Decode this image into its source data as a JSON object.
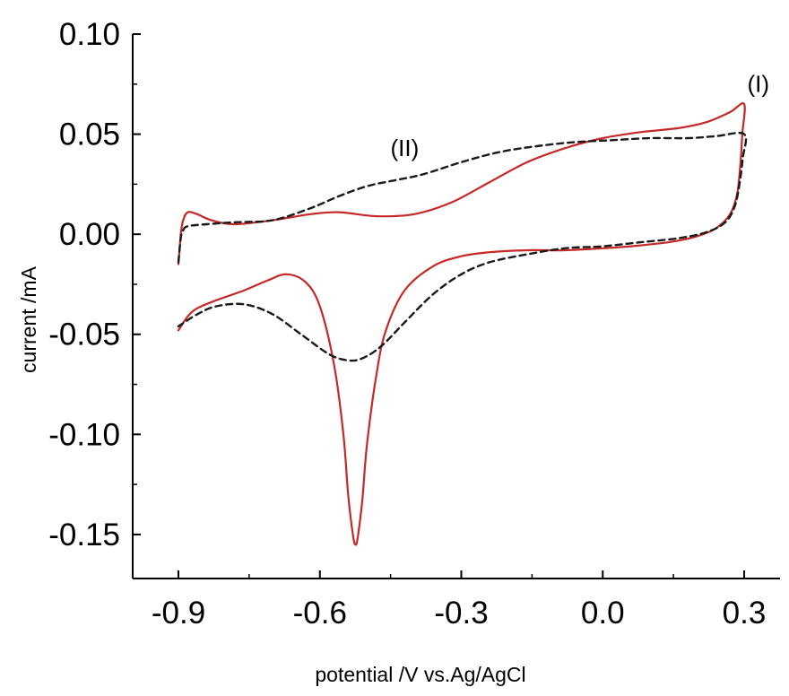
{
  "chart_data": {
    "type": "line",
    "title": "",
    "xlabel": "potential /V vs.Ag/AgCl",
    "ylabel": "current /mA",
    "xlim": [
      -1.0,
      0.35
    ],
    "ylim": [
      -0.172,
      0.1
    ],
    "xticks": [
      {
        "value": -0.9,
        "label": "-0.9"
      },
      {
        "value": -0.6,
        "label": "-0.6"
      },
      {
        "value": -0.3,
        "label": "-0.3"
      },
      {
        "value": 0.0,
        "label": "0.0"
      },
      {
        "value": 0.3,
        "label": "0.3"
      }
    ],
    "yticks": [
      {
        "value": 0.1,
        "label": "0.10"
      },
      {
        "value": 0.05,
        "label": "0.05"
      },
      {
        "value": 0.0,
        "label": "0.00"
      },
      {
        "value": -0.05,
        "label": "-0.05"
      },
      {
        "value": -0.1,
        "label": "-0.10"
      },
      {
        "value": -0.15,
        "label": "-0.15"
      }
    ],
    "grid": false,
    "legend": "none",
    "series": [
      {
        "name": "(I)",
        "color": "#c62828",
        "style": "solid",
        "points": [
          [
            -0.9,
            -0.015
          ],
          [
            -0.895,
            0.0
          ],
          [
            -0.89,
            0.007
          ],
          [
            -0.88,
            0.011
          ],
          [
            -0.86,
            0.01
          ],
          [
            -0.83,
            0.007
          ],
          [
            -0.78,
            0.005
          ],
          [
            -0.7,
            0.007
          ],
          [
            -0.62,
            0.01
          ],
          [
            -0.56,
            0.011
          ],
          [
            -0.48,
            0.009
          ],
          [
            -0.4,
            0.01
          ],
          [
            -0.32,
            0.016
          ],
          [
            -0.24,
            0.026
          ],
          [
            -0.16,
            0.036
          ],
          [
            -0.08,
            0.043
          ],
          [
            0.0,
            0.048
          ],
          [
            0.08,
            0.051
          ],
          [
            0.16,
            0.053
          ],
          [
            0.22,
            0.056
          ],
          [
            0.27,
            0.061
          ],
          [
            0.3,
            0.065
          ],
          [
            0.296,
            0.05
          ],
          [
            0.292,
            0.035
          ],
          [
            0.285,
            0.02
          ],
          [
            0.27,
            0.01
          ],
          [
            0.24,
            0.003
          ],
          [
            0.2,
            -0.001
          ],
          [
            0.14,
            -0.004
          ],
          [
            0.06,
            -0.006
          ],
          [
            0.0,
            -0.007
          ],
          [
            -0.08,
            -0.008
          ],
          [
            -0.16,
            -0.008
          ],
          [
            -0.24,
            -0.009
          ],
          [
            -0.3,
            -0.011
          ],
          [
            -0.36,
            -0.016
          ],
          [
            -0.42,
            -0.028
          ],
          [
            -0.46,
            -0.048
          ],
          [
            -0.48,
            -0.07
          ],
          [
            -0.5,
            -0.105
          ],
          [
            -0.51,
            -0.133
          ],
          [
            -0.52,
            -0.152
          ],
          [
            -0.525,
            -0.155
          ],
          [
            -0.53,
            -0.15
          ],
          [
            -0.54,
            -0.13
          ],
          [
            -0.55,
            -0.1
          ],
          [
            -0.57,
            -0.065
          ],
          [
            -0.6,
            -0.036
          ],
          [
            -0.63,
            -0.024
          ],
          [
            -0.67,
            -0.02
          ],
          [
            -0.71,
            -0.023
          ],
          [
            -0.76,
            -0.028
          ],
          [
            -0.82,
            -0.033
          ],
          [
            -0.86,
            -0.037
          ],
          [
            -0.88,
            -0.041
          ],
          [
            -0.9,
            -0.048
          ]
        ]
      },
      {
        "name": "(II)",
        "color": "#1a1a1a",
        "style": "dashed",
        "points": [
          [
            -0.9,
            -0.014
          ],
          [
            -0.895,
            -0.002
          ],
          [
            -0.89,
            0.002
          ],
          [
            -0.88,
            0.004
          ],
          [
            -0.84,
            0.005
          ],
          [
            -0.78,
            0.006
          ],
          [
            -0.7,
            0.007
          ],
          [
            -0.62,
            0.013
          ],
          [
            -0.56,
            0.019
          ],
          [
            -0.5,
            0.024
          ],
          [
            -0.44,
            0.027
          ],
          [
            -0.38,
            0.03
          ],
          [
            -0.3,
            0.036
          ],
          [
            -0.22,
            0.041
          ],
          [
            -0.14,
            0.044
          ],
          [
            -0.06,
            0.046
          ],
          [
            0.02,
            0.047
          ],
          [
            0.1,
            0.048
          ],
          [
            0.18,
            0.048
          ],
          [
            0.24,
            0.049
          ],
          [
            0.3,
            0.05
          ],
          [
            0.297,
            0.038
          ],
          [
            0.29,
            0.025
          ],
          [
            0.28,
            0.014
          ],
          [
            0.26,
            0.006
          ],
          [
            0.22,
            0.001
          ],
          [
            0.16,
            -0.002
          ],
          [
            0.08,
            -0.004
          ],
          [
            0.0,
            -0.006
          ],
          [
            -0.08,
            -0.007
          ],
          [
            -0.16,
            -0.01
          ],
          [
            -0.24,
            -0.014
          ],
          [
            -0.3,
            -0.02
          ],
          [
            -0.36,
            -0.03
          ],
          [
            -0.42,
            -0.044
          ],
          [
            -0.47,
            -0.056
          ],
          [
            -0.51,
            -0.062
          ],
          [
            -0.54,
            -0.063
          ],
          [
            -0.58,
            -0.06
          ],
          [
            -0.64,
            -0.05
          ],
          [
            -0.7,
            -0.04
          ],
          [
            -0.76,
            -0.035
          ],
          [
            -0.82,
            -0.036
          ],
          [
            -0.86,
            -0.04
          ],
          [
            -0.9,
            -0.046
          ]
        ]
      }
    ],
    "annotations": [
      {
        "text": "(I)",
        "x": 0.33,
        "y": 0.071
      },
      {
        "text": "(II)",
        "x": -0.42,
        "y": 0.039
      }
    ]
  }
}
